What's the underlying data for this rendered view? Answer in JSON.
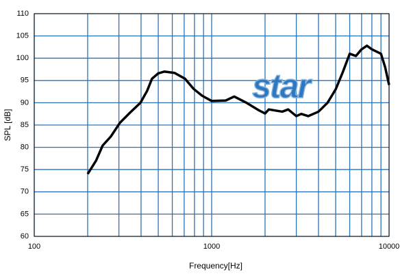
{
  "chart_data": {
    "type": "line",
    "watermark": "star",
    "xlabel": "Frequency[Hz]",
    "ylabel": "SPL [dB]",
    "xscale": "log",
    "xlim": [
      100,
      10000
    ],
    "xticks": [
      100,
      1000,
      10000
    ],
    "xminorticks": [
      200,
      300,
      400,
      500,
      600,
      700,
      800,
      900,
      2000,
      3000,
      4000,
      5000,
      6000,
      7000,
      8000,
      9000
    ],
    "ylim": [
      60,
      110
    ],
    "yticks": [
      60,
      65,
      70,
      75,
      80,
      85,
      90,
      95,
      100,
      105,
      110
    ],
    "grid": true,
    "grid_color": "#2a73b8",
    "series": [
      {
        "color": "#000000",
        "x": [
          200,
          223,
          243,
          270,
          304,
          347,
          397,
          433,
          461,
          500,
          541,
          618,
          707,
          792,
          882,
          1000,
          1200,
          1340,
          1570,
          1845,
          2000,
          2100,
          2500,
          2700,
          3000,
          3200,
          3500,
          4000,
          4500,
          5000,
          5500,
          6000,
          6500,
          7000,
          7500,
          8000,
          9000,
          9500,
          10000
        ],
        "values": [
          74,
          77,
          80.4,
          82.4,
          85.5,
          87.8,
          90,
          92.7,
          95.4,
          96.6,
          97,
          96.7,
          95.4,
          93.1,
          91.6,
          90.4,
          90.5,
          91.4,
          90,
          88.3,
          87.6,
          88.5,
          88,
          88.5,
          87,
          87.5,
          87,
          88,
          90,
          93,
          97,
          101,
          100.5,
          102,
          102.8,
          102,
          101,
          98,
          94
        ]
      }
    ]
  }
}
